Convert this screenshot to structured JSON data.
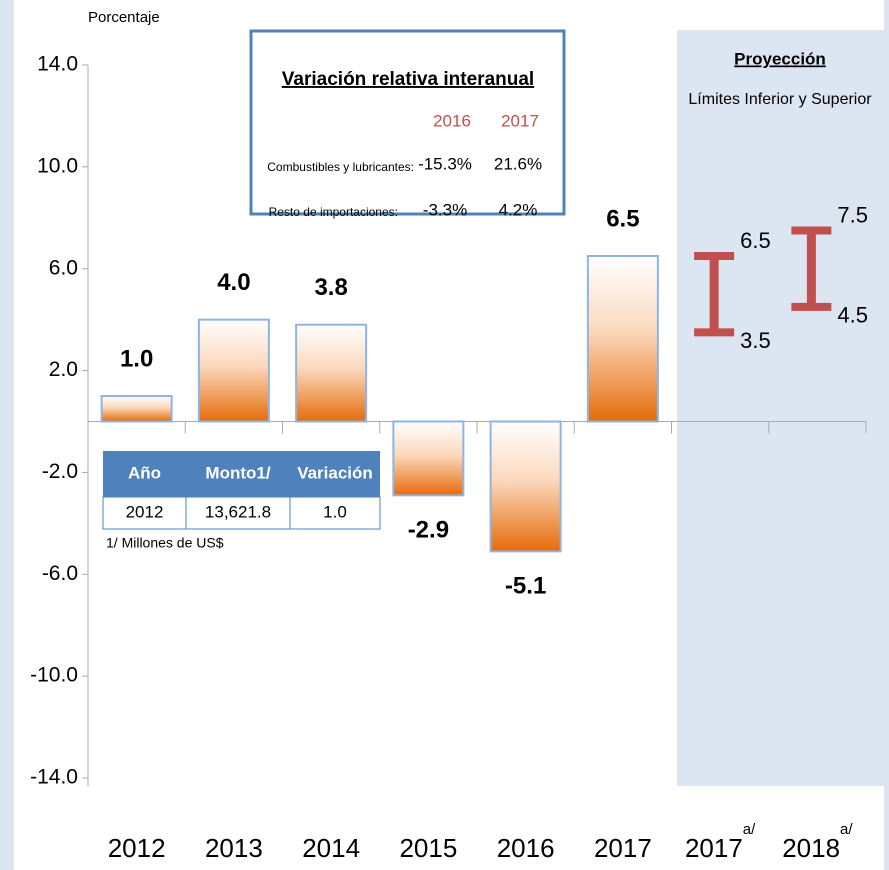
{
  "chart_data": {
    "type": "bar",
    "y_label": "Porcentaje",
    "categories": [
      "2012",
      "2013",
      "2014",
      "2015",
      "2016",
      "2017",
      "2017",
      "2018"
    ],
    "category_notes": [
      null,
      null,
      null,
      null,
      null,
      null,
      "a/",
      "a/"
    ],
    "values": [
      1.0,
      4.0,
      3.8,
      -2.9,
      -5.1,
      6.5,
      null,
      null
    ],
    "value_labels": [
      "1.0",
      "4.0",
      "3.8",
      "-2.9",
      "-5.1",
      "6.5",
      null,
      null
    ],
    "color": "#e46c0a",
    "ylim": [
      -14,
      14
    ],
    "yticks": [
      {
        "value": 14,
        "label": "14.0"
      },
      {
        "value": 10,
        "label": "10.0"
      },
      {
        "value": 6,
        "label": "6.0"
      },
      {
        "value": 2,
        "label": "2.0"
      },
      {
        "value": -2,
        "label": "-2.0"
      },
      {
        "value": -6,
        "label": "-6.0"
      },
      {
        "value": -10,
        "label": "-10.0"
      },
      {
        "value": -14,
        "label": "-14.0"
      }
    ],
    "projection": {
      "title": "Proyección",
      "subtitle": "Límites Inferior y Superior",
      "color": "#c0504d",
      "low": [
        null,
        null,
        null,
        null,
        null,
        null,
        3.5,
        4.5
      ],
      "high": [
        null,
        null,
        null,
        null,
        null,
        null,
        6.5,
        7.5
      ]
    },
    "inset": {
      "title": "Variación relativa interanual",
      "columns": [
        "2016",
        "2017"
      ],
      "rows": [
        [
          "Combustibles y lubricantes:",
          "-15.3%",
          "21.6%"
        ],
        [
          "Resto de importaciones:",
          "-3.3%",
          "4.2%"
        ]
      ]
    },
    "table": {
      "header": [
        "Año",
        "Monto1/",
        "Variación"
      ],
      "rows": [
        [
          "2012",
          "13,621.8",
          "1.0"
        ]
      ],
      "footnote": "1/ Millones de US$"
    }
  }
}
